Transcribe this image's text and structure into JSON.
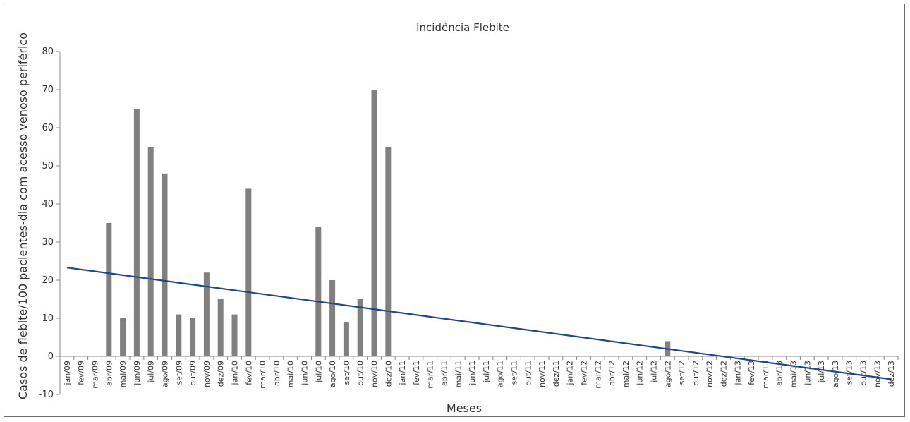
{
  "chart_data": {
    "type": "bar",
    "title": "Incidência Flebite",
    "xlabel": "Meses",
    "ylabel": "Casos de flebite/100 pacientes-dia com acesso venoso periférico",
    "ylim": [
      -10,
      80
    ],
    "yticks": [
      -10,
      0,
      10,
      20,
      30,
      40,
      50,
      60,
      70,
      80
    ],
    "categories": [
      "jan/09",
      "fev/09",
      "mar/09",
      "abr/09",
      "mai/09",
      "jun/09",
      "jul/09",
      "ago/09",
      "set/09",
      "out/09",
      "nov/09",
      "dez/09",
      "jan/10",
      "fev/10",
      "mar/10",
      "abr/10",
      "mai/10",
      "jun/10",
      "jul/10",
      "ago/10",
      "set/10",
      "out/10",
      "nov/10",
      "dez/10",
      "jan/11",
      "fev/11",
      "mar/11",
      "abr/11",
      "mai/11",
      "jun/11",
      "jul/11",
      "ago/11",
      "set/11",
      "out/11",
      "nov/11",
      "dez/11",
      "jan/12",
      "fev/12",
      "mar/12",
      "abr/12",
      "mai/12",
      "jun/12",
      "jul/12",
      "ago/12",
      "set/12",
      "out/12",
      "nov/12",
      "dez/12",
      "jan/13",
      "fev/13",
      "mar/13",
      "abr/13",
      "mai/13",
      "jun/13",
      "jul/13",
      "ago/13",
      "set/13",
      "out/13",
      "nov/13",
      "dez/13"
    ],
    "values": [
      0,
      0,
      0,
      35,
      10,
      65,
      55,
      48,
      11,
      10,
      22,
      15,
      11,
      44,
      0,
      0,
      0,
      0,
      34,
      20,
      9,
      15,
      70,
      55,
      0,
      0,
      0,
      0,
      0,
      0,
      0,
      0,
      0,
      0,
      0,
      0,
      0,
      0,
      0,
      0,
      0,
      0,
      0,
      4,
      0,
      0,
      0,
      0,
      0,
      0,
      0,
      0,
      0,
      0,
      0,
      0,
      0,
      0,
      0,
      0
    ],
    "trendline": {
      "start": 23.3,
      "end": -6
    },
    "grid": false,
    "colors": {
      "bars": "#808080",
      "trendline": "#1b4b86",
      "axis": "#888888"
    }
  }
}
